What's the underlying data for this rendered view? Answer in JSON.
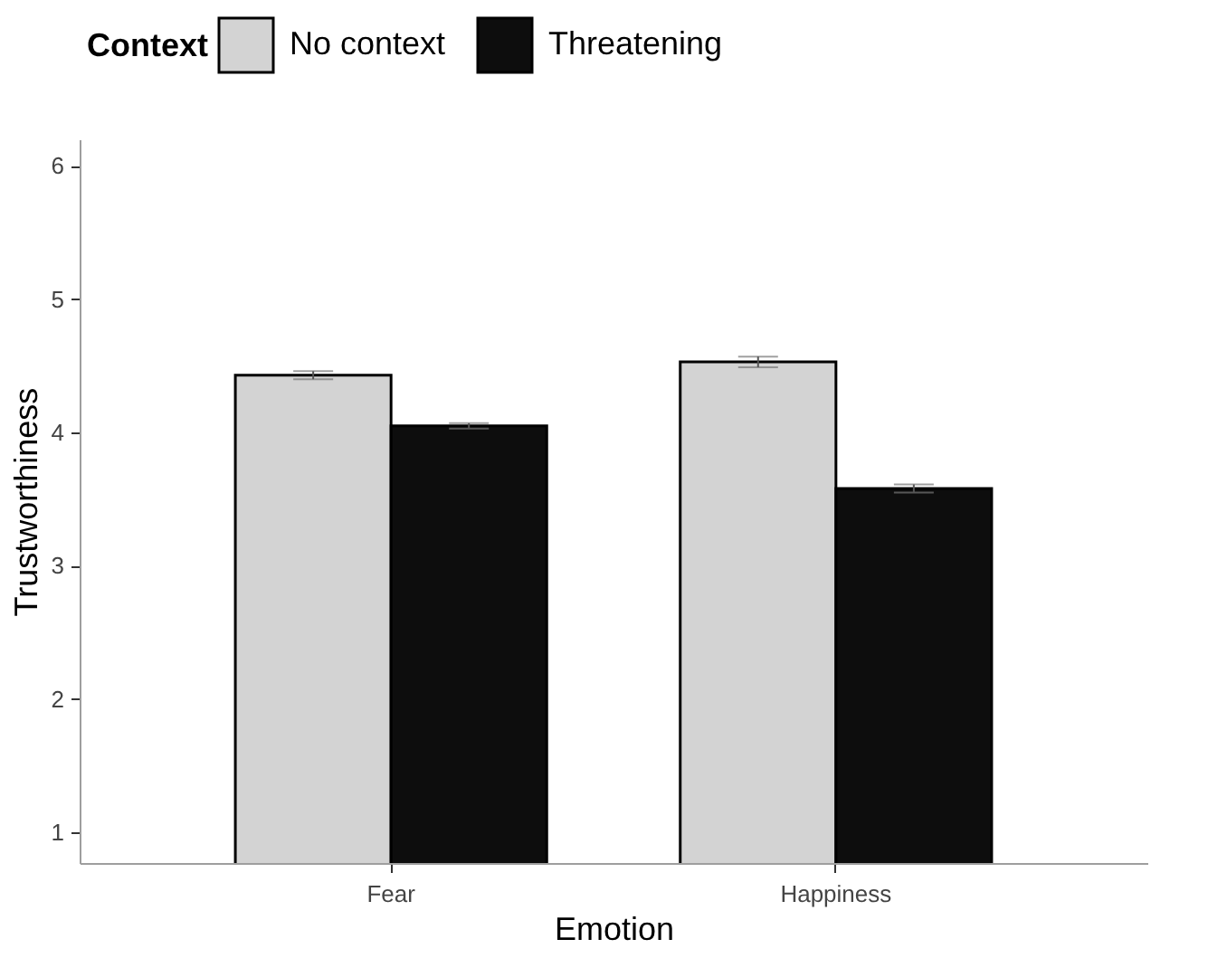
{
  "chart_data": {
    "type": "bar",
    "xlabel": "Emotion",
    "ylabel": "Trustworthiness",
    "legend_title": "Context",
    "legend": "top",
    "categories": [
      "Fear",
      "Happiness"
    ],
    "series": [
      {
        "name": "No context",
        "color": "#d3d3d3",
        "values": [
          4.43,
          4.53
        ],
        "errors": [
          0.03,
          0.04
        ]
      },
      {
        "name": "Threatening",
        "color": "#0d0d0d",
        "values": [
          4.05,
          3.58
        ],
        "errors": [
          0.02,
          0.03
        ]
      }
    ],
    "ylim": [
      0.77,
      6.2
    ],
    "yticks": [
      1,
      2,
      3,
      4,
      5,
      6
    ],
    "grid": false
  }
}
